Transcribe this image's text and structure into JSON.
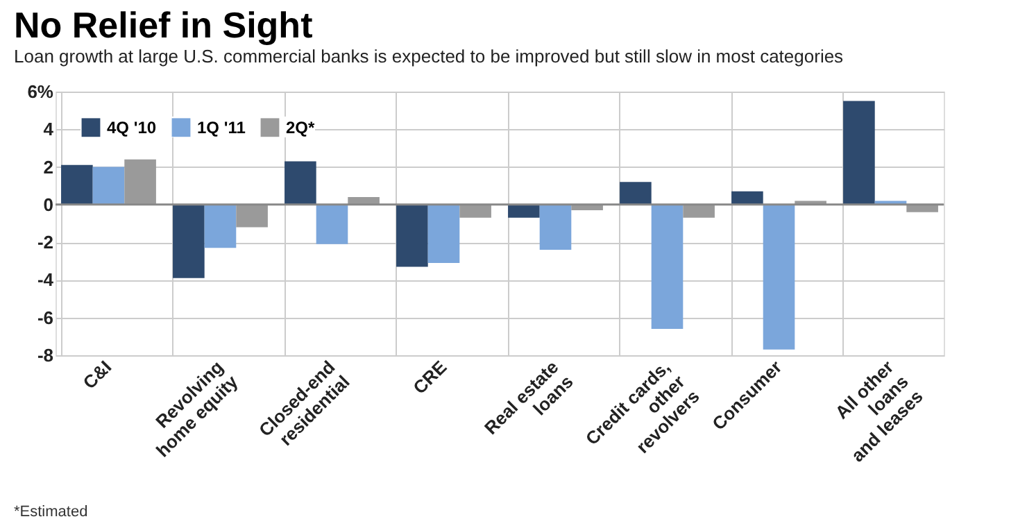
{
  "chart_data": {
    "type": "bar",
    "title": "No Relief in Sight",
    "subtitle": "Loan growth at large U.S. commercial banks is expected to be improved but still slow in most categories",
    "categories": [
      "C&I",
      "Revolving\nhome equity",
      "Closed-end\nresidential",
      "CRE",
      "Real estate\nloans",
      "Credit cards,\nother\nrevolvers",
      "Consumer",
      "All other\nloans\nand leases"
    ],
    "series": [
      {
        "name": "4Q '10",
        "color": "#2e4a6e",
        "values": [
          2.1,
          -3.9,
          2.3,
          -3.3,
          -0.7,
          1.2,
          0.7,
          5.5
        ]
      },
      {
        "name": "1Q '11",
        "color": "#7ba6db",
        "values": [
          2.0,
          -2.3,
          -2.1,
          -3.1,
          -2.4,
          -6.6,
          -7.7,
          0.2
        ]
      },
      {
        "name": "2Q*",
        "color": "#9a9a9a",
        "values": [
          2.4,
          -1.2,
          0.4,
          -0.7,
          -0.3,
          -0.7,
          0.2,
          -0.4
        ]
      }
    ],
    "ylim": [
      -8,
      6
    ],
    "yticks": [
      {
        "value": 6,
        "label": "6%"
      },
      4,
      2,
      0,
      -2,
      -4,
      -6,
      -8
    ],
    "grid": true,
    "legend": "top left",
    "annotations": [
      "*Estimated"
    ]
  }
}
